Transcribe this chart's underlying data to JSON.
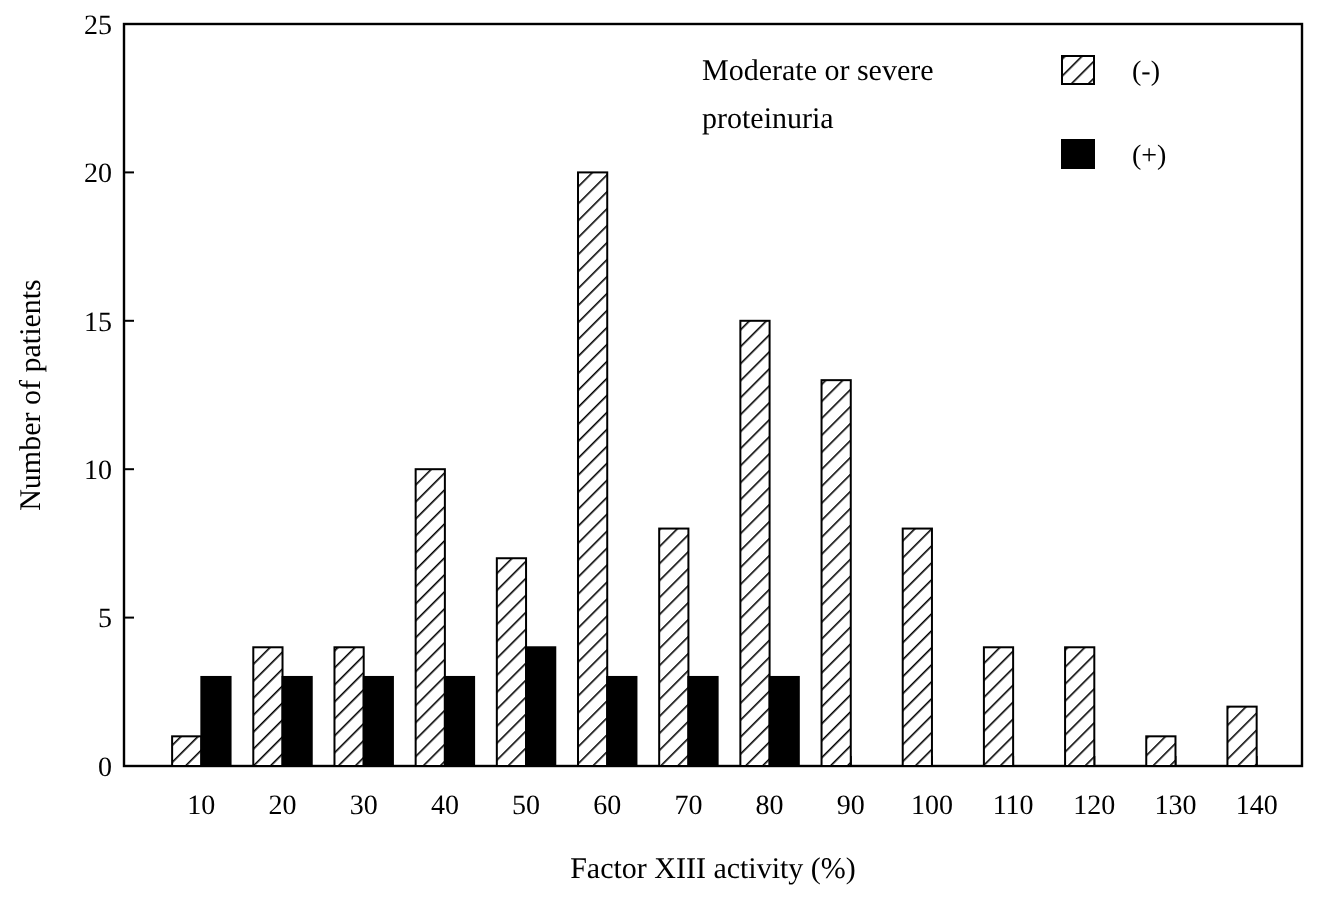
{
  "chart_data": {
    "type": "bar",
    "xlabel": "Factor XIII activity (%)",
    "ylabel": "Number of patients",
    "legend_title": "Moderate or severe proteinuria",
    "categories": [
      "10",
      "20",
      "30",
      "40",
      "50",
      "60",
      "70",
      "80",
      "90",
      "100",
      "110",
      "120",
      "130",
      "140"
    ],
    "series": [
      {
        "name": "(-)",
        "color": "#000000",
        "values": [
          1,
          4,
          4,
          10,
          7,
          20,
          8,
          15,
          13,
          8,
          4,
          4,
          1,
          2
        ]
      },
      {
        "name": "(+)",
        "color": "#000000",
        "values": [
          3,
          3,
          3,
          3,
          4,
          3,
          3,
          3,
          0,
          0,
          0,
          0,
          0,
          0
        ]
      }
    ],
    "ylim": [
      0,
      25
    ],
    "yticks": [
      0,
      5,
      10,
      15,
      20,
      25
    ],
    "grid": false,
    "legend": "top right"
  }
}
